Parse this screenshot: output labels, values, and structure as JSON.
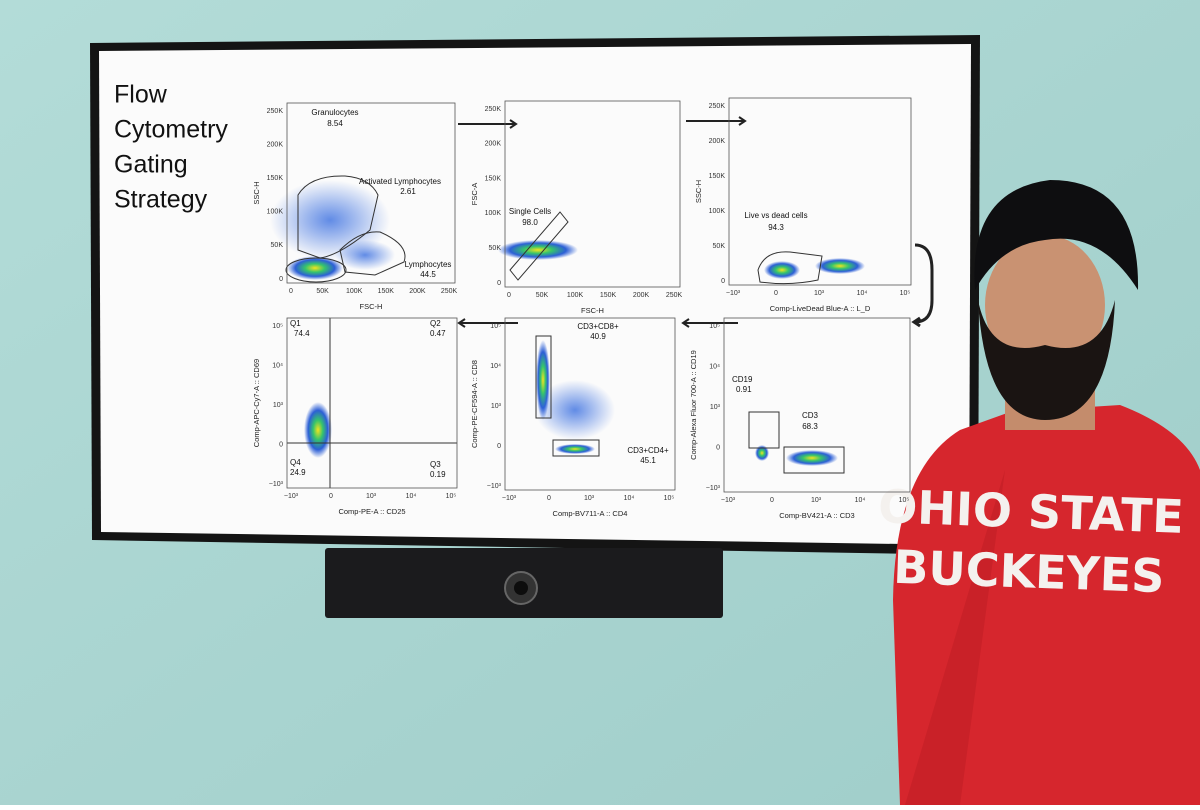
{
  "screen": {
    "title": [
      "Flow",
      "Cytometry",
      "Gating",
      "Strategy"
    ],
    "panels": [
      {
        "x_label": "FSC-H",
        "y_label": "SSC-H",
        "x_ticks": [
          "0",
          "50K",
          "100K",
          "150K",
          "200K",
          "250K"
        ],
        "y_ticks": [
          "250K",
          "200K",
          "150K",
          "100K",
          "50K",
          "0"
        ],
        "gates": [
          {
            "name": "Granulocytes",
            "value": "8.54"
          },
          {
            "name": "Activated Lymphocytes",
            "value": "2.61"
          },
          {
            "name": "Lymphocytes",
            "value": "44.5"
          }
        ]
      },
      {
        "x_label": "FSC-H",
        "y_label": "FSC-A",
        "x_ticks": [
          "0",
          "50K",
          "100K",
          "150K",
          "200K",
          "250K"
        ],
        "y_ticks": [
          "250K",
          "200K",
          "150K",
          "100K",
          "50K",
          "0"
        ],
        "gates": [
          {
            "name": "Single Cells",
            "value": "98.0"
          }
        ]
      },
      {
        "x_label": "Comp-LiveDead Blue-A :: L_D",
        "y_label": "SSC-H",
        "x_ticks": [
          "−10³",
          "0",
          "10³",
          "10⁴",
          "10⁵"
        ],
        "y_ticks": [
          "250K",
          "200K",
          "150K",
          "100K",
          "50K",
          "0"
        ],
        "gates": [
          {
            "name": "Live vs dead cells",
            "value": "94.3"
          }
        ]
      },
      {
        "x_label": "Comp-PE-A :: CD25",
        "y_label": "Comp-APC-Cy7-A :: CD69",
        "x_ticks": [
          "−10³",
          "0",
          "10³",
          "10⁴",
          "10⁵"
        ],
        "y_ticks": [
          "10⁵",
          "10⁴",
          "10³",
          "0",
          "−10³"
        ],
        "gates": [
          {
            "name": "Q1",
            "value": "74.4"
          },
          {
            "name": "Q2",
            "value": "0.47"
          },
          {
            "name": "Q3",
            "value": "0.19"
          },
          {
            "name": "Q4",
            "value": "24.9"
          }
        ]
      },
      {
        "x_label": "Comp-BV711-A :: CD4",
        "y_label": "Comp-PE-CF594-A :: CD8",
        "x_ticks": [
          "−10³",
          "0",
          "10³",
          "10⁴",
          "10⁵"
        ],
        "y_ticks": [
          "10⁵",
          "10⁴",
          "10³",
          "0",
          "−10³"
        ],
        "gates": [
          {
            "name": "CD3+CD8+",
            "value": "40.9"
          },
          {
            "name": "CD3+CD4+",
            "value": "45.1"
          }
        ]
      },
      {
        "x_label": "Comp-BV421-A :: CD3",
        "y_label": "Comp-Alexa Fluor 700-A :: CD19",
        "x_ticks": [
          "−10³",
          "0",
          "10³",
          "10⁴",
          "10⁵"
        ],
        "y_ticks": [
          "10⁵",
          "10⁴",
          "10³",
          "0",
          "−10³"
        ],
        "gates": [
          {
            "name": "CD19",
            "value": "0.91"
          },
          {
            "name": "CD3",
            "value": "68.3"
          }
        ]
      }
    ]
  },
  "shirt": {
    "lines": [
      "OHIO STATE",
      "BUCKEYES"
    ]
  }
}
